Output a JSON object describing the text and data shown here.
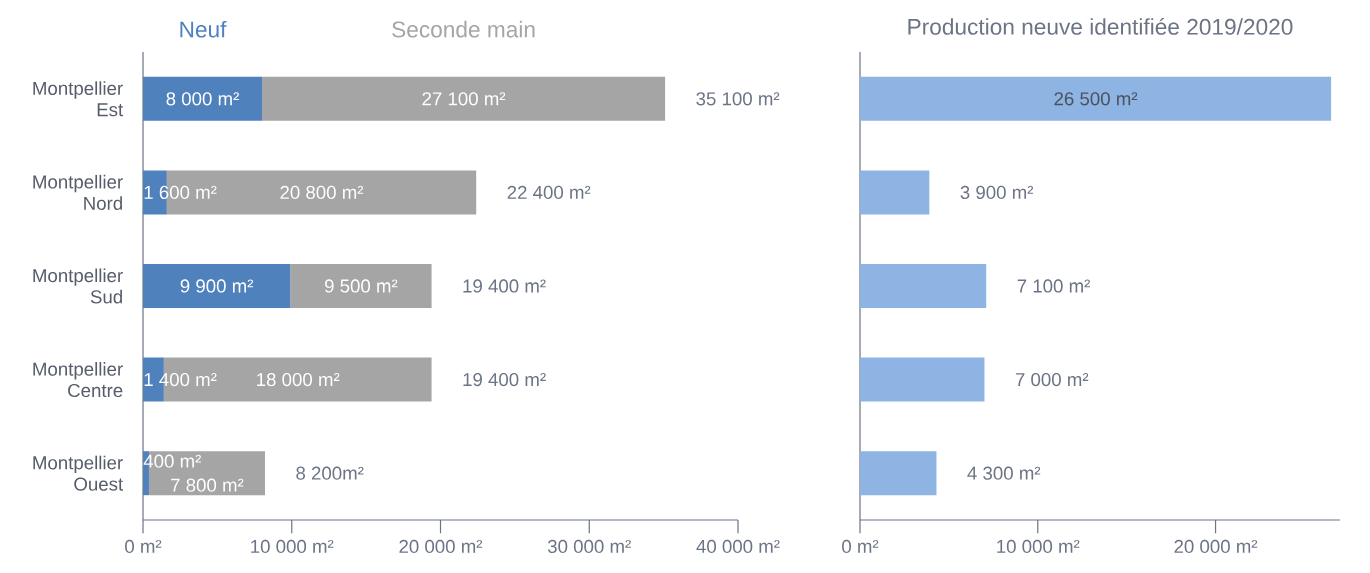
{
  "chart_data": [
    {
      "type": "bar",
      "orientation": "horizontal",
      "stacked": true,
      "legend": "top",
      "categories": [
        "Montpellier Est",
        "Montpellier Nord",
        "Montpellier Sud",
        "Montpellier Centre",
        "Montpellier Ouest"
      ],
      "series": [
        {
          "name": "Neuf",
          "color": "#4f81bd",
          "values": [
            8000,
            1600,
            9900,
            1400,
            400
          ],
          "value_labels": [
            "8 000 m²",
            "1 600 m²",
            "9 900 m²",
            "1 400 m²",
            "400 m²"
          ]
        },
        {
          "name": "Seconde main",
          "color": "#a5a5a5",
          "values": [
            27100,
            20800,
            9500,
            18000,
            7800
          ],
          "value_labels": [
            "27 100 m²",
            "20 800 m²",
            "9 500 m²",
            "18 000 m²",
            "7 800 m²"
          ]
        }
      ],
      "totals": [
        "35 100 m²",
        "22 400 m²",
        "19 400 m²",
        "19 400 m²",
        "8 200m²"
      ],
      "xlim": [
        0,
        40000
      ],
      "xticks": [
        {
          "value": 0,
          "label": "0 m²"
        },
        {
          "value": 10000,
          "label": "10 000 m²"
        },
        {
          "value": 20000,
          "label": "20 000 m²"
        },
        {
          "value": 30000,
          "label": "30 000 m²"
        },
        {
          "value": 40000,
          "label": "40 000 m²"
        }
      ]
    },
    {
      "type": "bar",
      "orientation": "horizontal",
      "title": "Production neuve identifiée 2019/2020",
      "tick_labels": "x",
      "categories": [
        null,
        null,
        null,
        null,
        null
      ],
      "series": [
        {
          "color": "#8eb4e3",
          "values": [
            26500,
            3900,
            7100,
            7000,
            4300
          ],
          "value_labels": [
            "26 500 m²",
            "3 900 m²",
            "7 100 m²",
            "7 000 m²",
            "4 300 m²"
          ]
        }
      ],
      "xlim": [
        0,
        27000
      ],
      "xticks": [
        {
          "value": 0,
          "label": "0 m²"
        },
        {
          "value": 10000,
          "label": "10 000 m²"
        },
        {
          "value": 20000,
          "label": "20 000 m²"
        }
      ]
    }
  ]
}
